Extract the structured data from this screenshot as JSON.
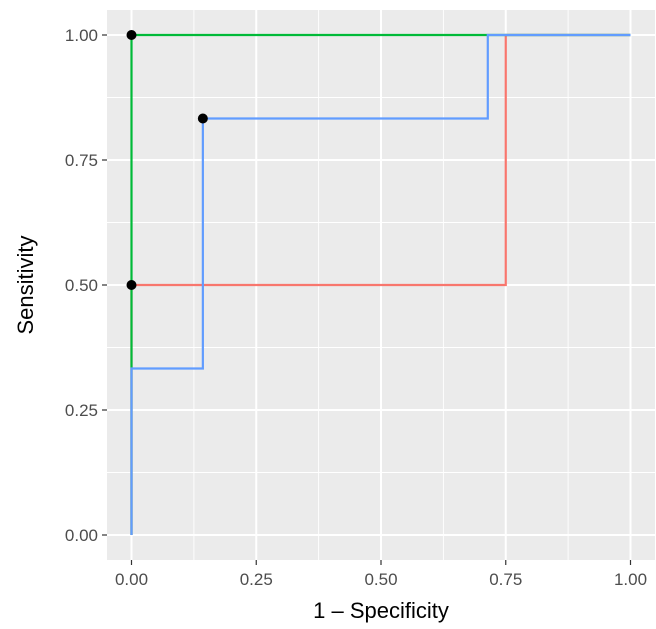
{
  "chart_data": {
    "type": "line",
    "title": "",
    "xlabel": "1 – Specificity",
    "ylabel": "Sensitivity",
    "xlim": [
      0,
      1
    ],
    "ylim": [
      0,
      1
    ],
    "x_ticks": [
      0,
      0.25,
      0.5,
      0.75,
      1
    ],
    "y_ticks": [
      0,
      0.25,
      0.5,
      0.75,
      1
    ],
    "x_tick_labels": [
      "0.00",
      "0.25",
      "0.50",
      "0.75",
      "1.00"
    ],
    "y_tick_labels": [
      "0.00",
      "0.25",
      "0.50",
      "0.75",
      "1.00"
    ],
    "grid": true,
    "background": "#ebebeb",
    "grid_color": "#ffffff",
    "legend": "none",
    "series": [
      {
        "color": "#f8766d",
        "step": true,
        "x": [
          0,
          0,
          0,
          0.75,
          0.75,
          1
        ],
        "y": [
          0,
          0.5,
          0.5,
          0.5,
          1,
          1
        ]
      },
      {
        "color": "#00ba38",
        "step": true,
        "x": [
          0,
          0,
          0,
          1
        ],
        "y": [
          0,
          1,
          1,
          1
        ]
      },
      {
        "color": "#619cff",
        "step": true,
        "x": [
          0,
          0,
          0.143,
          0.143,
          0.714,
          0.714,
          1
        ],
        "y": [
          0,
          0.333,
          0.333,
          0.833,
          0.833,
          1,
          1
        ]
      }
    ],
    "points": [
      {
        "x": 0,
        "y": 1,
        "color": "#000000"
      },
      {
        "x": 0.143,
        "y": 0.833,
        "color": "#000000"
      },
      {
        "x": 0,
        "y": 0.5,
        "color": "#000000"
      }
    ]
  }
}
